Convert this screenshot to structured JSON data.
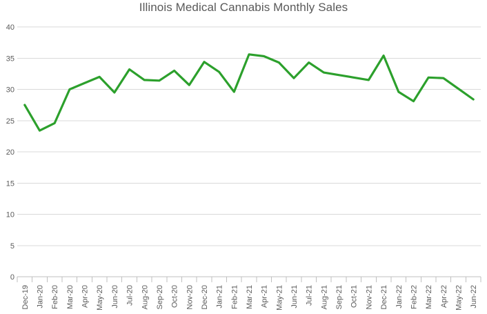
{
  "chart_data": {
    "type": "line",
    "title": "Illinois Medical Cannabis Monthly Sales",
    "categories": [
      "Dec-19",
      "Jan-20",
      "Feb-20",
      "Mar-20",
      "Apr-20",
      "May-20",
      "Jun-20",
      "Jul-20",
      "Aug-20",
      "Sep-20",
      "Oct-20",
      "Nov-20",
      "Dec-20",
      "Jan-21",
      "Feb-21",
      "Mar-21",
      "Apr-21",
      "May-21",
      "Jun-21",
      "Jul-21",
      "Aug-21",
      "Sep-21",
      "Oct-21",
      "Nov-21",
      "Dec-21",
      "Jan-22",
      "Feb-22",
      "Mar-22",
      "Apr-22",
      "May-22",
      "Jun-22"
    ],
    "series": [
      {
        "name": "Monthly Sales",
        "color": "#2CA02C",
        "values": [
          27.5,
          23.4,
          24.6,
          30.0,
          31.0,
          32.0,
          29.5,
          33.2,
          31.5,
          31.4,
          33.0,
          30.7,
          34.4,
          32.8,
          29.6,
          35.6,
          35.3,
          34.3,
          31.8,
          34.3,
          32.7,
          32.3,
          31.9,
          31.5,
          35.4,
          29.6,
          28.1,
          31.9,
          31.8,
          30.1,
          28.4
        ]
      }
    ],
    "xlabel": "",
    "ylabel": "",
    "ylim": [
      0,
      40
    ],
    "yticks": [
      0,
      5,
      10,
      15,
      20,
      25,
      30,
      35,
      40
    ],
    "grid": true,
    "legend": "none",
    "x_tick_rotation": 90
  },
  "colors": {
    "line": "#2CA02C",
    "gridline": "#D9D9D9",
    "axis": "#BFBFBF",
    "text": "#595959"
  }
}
